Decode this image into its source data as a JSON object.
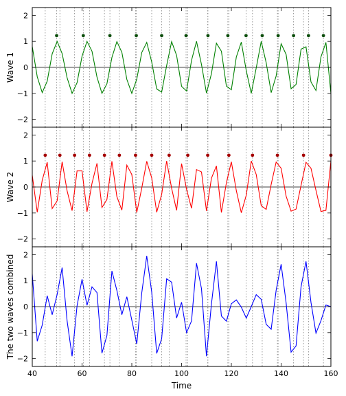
{
  "chart_data": [
    {
      "type": "line",
      "ylabel": "Wave 1",
      "xlim": [
        40,
        160
      ],
      "ylim": [
        -2.3,
        2.3
      ],
      "yticks": [
        -2,
        -1,
        0,
        1,
        2
      ],
      "ytick_labels": [
        "−2",
        "−1",
        "0",
        "1",
        "2"
      ],
      "hline": 0,
      "series": [
        {
          "color": "#008000",
          "peaks": [
            49.8,
            60.5,
            71.2,
            81.8,
            92.0,
            101.8,
            110.6,
            118.6,
            125.9,
            132.4,
            138.8,
            145.0,
            151.0,
            157.0
          ],
          "x": [
            40,
            42,
            44,
            46,
            48,
            50,
            52,
            54,
            56,
            58,
            60,
            62,
            64,
            66,
            68,
            70,
            72,
            74,
            76,
            78,
            80,
            82,
            84,
            86,
            88,
            90,
            92,
            94,
            96,
            98,
            100,
            102,
            104,
            106,
            108,
            110,
            112,
            114,
            116,
            118,
            120,
            122,
            124,
            126,
            128,
            130,
            132,
            134,
            136,
            138,
            140,
            142,
            144,
            146,
            148,
            150,
            152,
            154,
            156,
            158,
            160
          ],
          "y": [
            0.8,
            -0.36,
            -0.97,
            -0.53,
            0.52,
            1.0,
            0.53,
            -0.4,
            -1.0,
            -0.59,
            0.43,
            1.0,
            0.62,
            -0.37,
            -1.0,
            -0.63,
            0.38,
            0.99,
            0.58,
            -0.46,
            -1.0,
            -0.45,
            0.57,
            0.96,
            0.21,
            -0.83,
            -0.95,
            0.07,
            0.99,
            0.46,
            -0.73,
            -0.91,
            0.27,
            1.0,
            0.11,
            -0.99,
            -0.24,
            0.93,
            0.62,
            -0.72,
            -0.86,
            0.4,
            0.97,
            -0.13,
            -1.0,
            -0.02,
            1.0,
            0.18,
            -0.97,
            -0.33,
            0.91,
            0.5,
            -0.82,
            -0.66,
            0.7,
            0.79,
            -0.56,
            -0.89,
            0.4,
            0.96,
            -1.0
          ]
        }
      ],
      "marker_y": 1.22
    },
    {
      "type": "line",
      "ylabel": "Wave 2",
      "xlim": [
        40,
        160
      ],
      "ylim": [
        -2.3,
        2.3
      ],
      "yticks": [
        -2,
        -1,
        0,
        1,
        2
      ],
      "ytick_labels": [
        "−2",
        "−1",
        "0",
        "1",
        "2"
      ],
      "hline": 0,
      "series": [
        {
          "color": "#ff0000",
          "peaks": [
            45.2,
            51.1,
            57.0,
            63.0,
            69.0,
            75.0,
            81.5,
            88.0,
            95.0,
            102.5,
            110.5,
            119.0,
            128.5,
            138.5,
            149.0,
            160.0
          ],
          "x": [
            40,
            42,
            44,
            46,
            48,
            50,
            52,
            54,
            56,
            58,
            60,
            62,
            64,
            66,
            68,
            70,
            72,
            74,
            76,
            78,
            80,
            82,
            84,
            86,
            88,
            90,
            92,
            94,
            96,
            98,
            100,
            102,
            104,
            106,
            108,
            110,
            112,
            114,
            116,
            118,
            120,
            122,
            124,
            126,
            128,
            130,
            132,
            134,
            136,
            138,
            140,
            142,
            144,
            146,
            148,
            150,
            152,
            154,
            156,
            158,
            160
          ],
          "y": [
            0.45,
            -0.97,
            0.26,
            0.95,
            -0.83,
            -0.53,
            0.97,
            -0.15,
            -0.91,
            0.62,
            0.62,
            -0.95,
            0.14,
            0.91,
            -0.79,
            -0.48,
            0.99,
            -0.37,
            -0.89,
            0.84,
            0.48,
            -0.98,
            -0.04,
            0.99,
            0.35,
            -0.97,
            -0.28,
            1.0,
            -0.05,
            -0.9,
            0.9,
            -0.09,
            -0.82,
            0.67,
            0.58,
            -0.92,
            0.34,
            0.81,
            -0.98,
            0.16,
            0.97,
            -0.14,
            -0.99,
            -0.31,
            1.0,
            0.48,
            -0.72,
            -0.86,
            0.1,
            0.96,
            0.72,
            -0.35,
            -0.93,
            -0.85,
            0.06,
            0.95,
            0.72,
            -0.13,
            -0.94,
            -0.9,
            1.0
          ]
        }
      ],
      "marker_y": 1.22
    },
    {
      "type": "line",
      "ylabel": "The two waves combined",
      "xlabel": "Time",
      "xlim": [
        40,
        160
      ],
      "xticks": [
        40,
        60,
        80,
        100,
        120,
        140,
        160
      ],
      "ylim": [
        -2.3,
        2.3
      ],
      "yticks": [
        -2,
        -1,
        0,
        1,
        2
      ],
      "ytick_labels": [
        "−2",
        "−1",
        "0",
        "1",
        "2"
      ],
      "hline": 0,
      "series": [
        {
          "color": "#0000ff",
          "x": [
            40,
            42,
            44,
            46,
            48,
            50,
            52,
            54,
            56,
            58,
            60,
            62,
            64,
            66,
            68,
            70,
            72,
            74,
            76,
            78,
            80,
            82,
            84,
            86,
            88,
            90,
            92,
            94,
            96,
            98,
            100,
            102,
            104,
            106,
            108,
            110,
            112,
            114,
            116,
            118,
            120,
            122,
            124,
            126,
            128,
            130,
            132,
            134,
            136,
            138,
            140,
            142,
            144,
            146,
            148,
            150,
            152,
            154,
            156,
            158,
            160
          ],
          "y": [
            1.25,
            -1.33,
            -0.71,
            0.42,
            -0.31,
            0.47,
            1.5,
            -0.55,
            -1.91,
            0.03,
            1.05,
            0.05,
            0.76,
            0.54,
            -1.79,
            -1.11,
            1.37,
            0.62,
            -0.31,
            0.38,
            -0.52,
            -1.43,
            0.53,
            1.95,
            0.56,
            -1.8,
            -1.23,
            1.07,
            0.94,
            -0.44,
            0.17,
            -1.0,
            -0.55,
            1.67,
            0.69,
            -1.91,
            0.1,
            1.74,
            -0.36,
            -0.56,
            0.11,
            0.26,
            -0.02,
            -0.44,
            0.0,
            0.46,
            0.28,
            -0.68,
            -0.87,
            0.63,
            1.63,
            0.15,
            -1.75,
            -1.51,
            0.76,
            1.74,
            0.16,
            -1.02,
            -0.54,
            0.06,
            0.0
          ]
        }
      ]
    }
  ],
  "shared": {
    "vlines_wave1_color": "#808080",
    "vlines_wave2_color": "#808080",
    "frame_color": "#000000",
    "zero_line_color": "#000000"
  }
}
